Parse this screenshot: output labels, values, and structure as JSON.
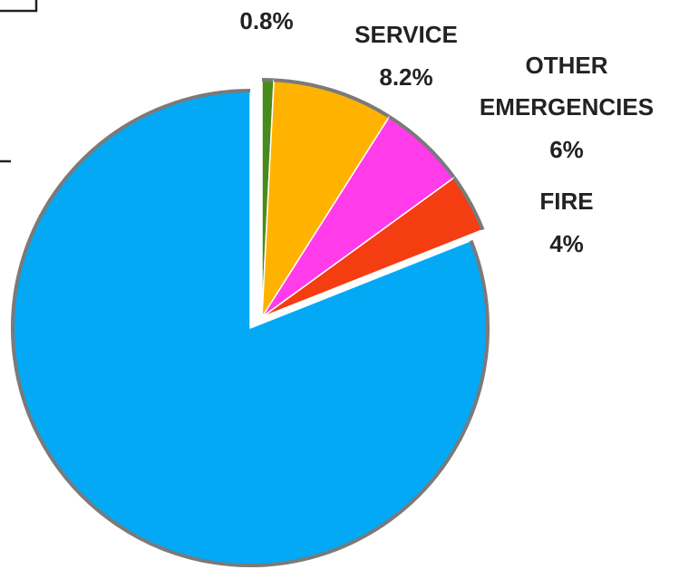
{
  "chart_data": {
    "type": "pie",
    "start_angle_deg": 0,
    "direction": "clockwise",
    "exploded_group": [
      "0.8%",
      "SERVICE",
      "OTHER EMERGENCIES",
      "FIRE"
    ],
    "slices": [
      {
        "label": "",
        "value_text": "0.8%",
        "value": 0.8,
        "color": "#4a8a1c"
      },
      {
        "label": "SERVICE",
        "value_text": "8.2%",
        "value": 8.2,
        "color": "#ffb300"
      },
      {
        "label": "OTHER EMERGENCIES",
        "value_text": "6%",
        "value": 6,
        "color": "#ff3bea"
      },
      {
        "label": "FIRE",
        "value_text": "4%",
        "value": 4,
        "color": "#f53d12"
      },
      {
        "label": "",
        "value_text": "",
        "value": 81,
        "color": "#03a9f4"
      }
    ],
    "label_lines": {
      "slice0": [
        "0.8%"
      ],
      "slice1": [
        "SERVICE",
        "8.2%"
      ],
      "slice2": [
        "OTHER",
        "EMERGENCIES",
        "6%"
      ],
      "slice3": [
        "FIRE",
        "4%"
      ]
    },
    "title": "",
    "border_color": "#7a7a7a"
  }
}
